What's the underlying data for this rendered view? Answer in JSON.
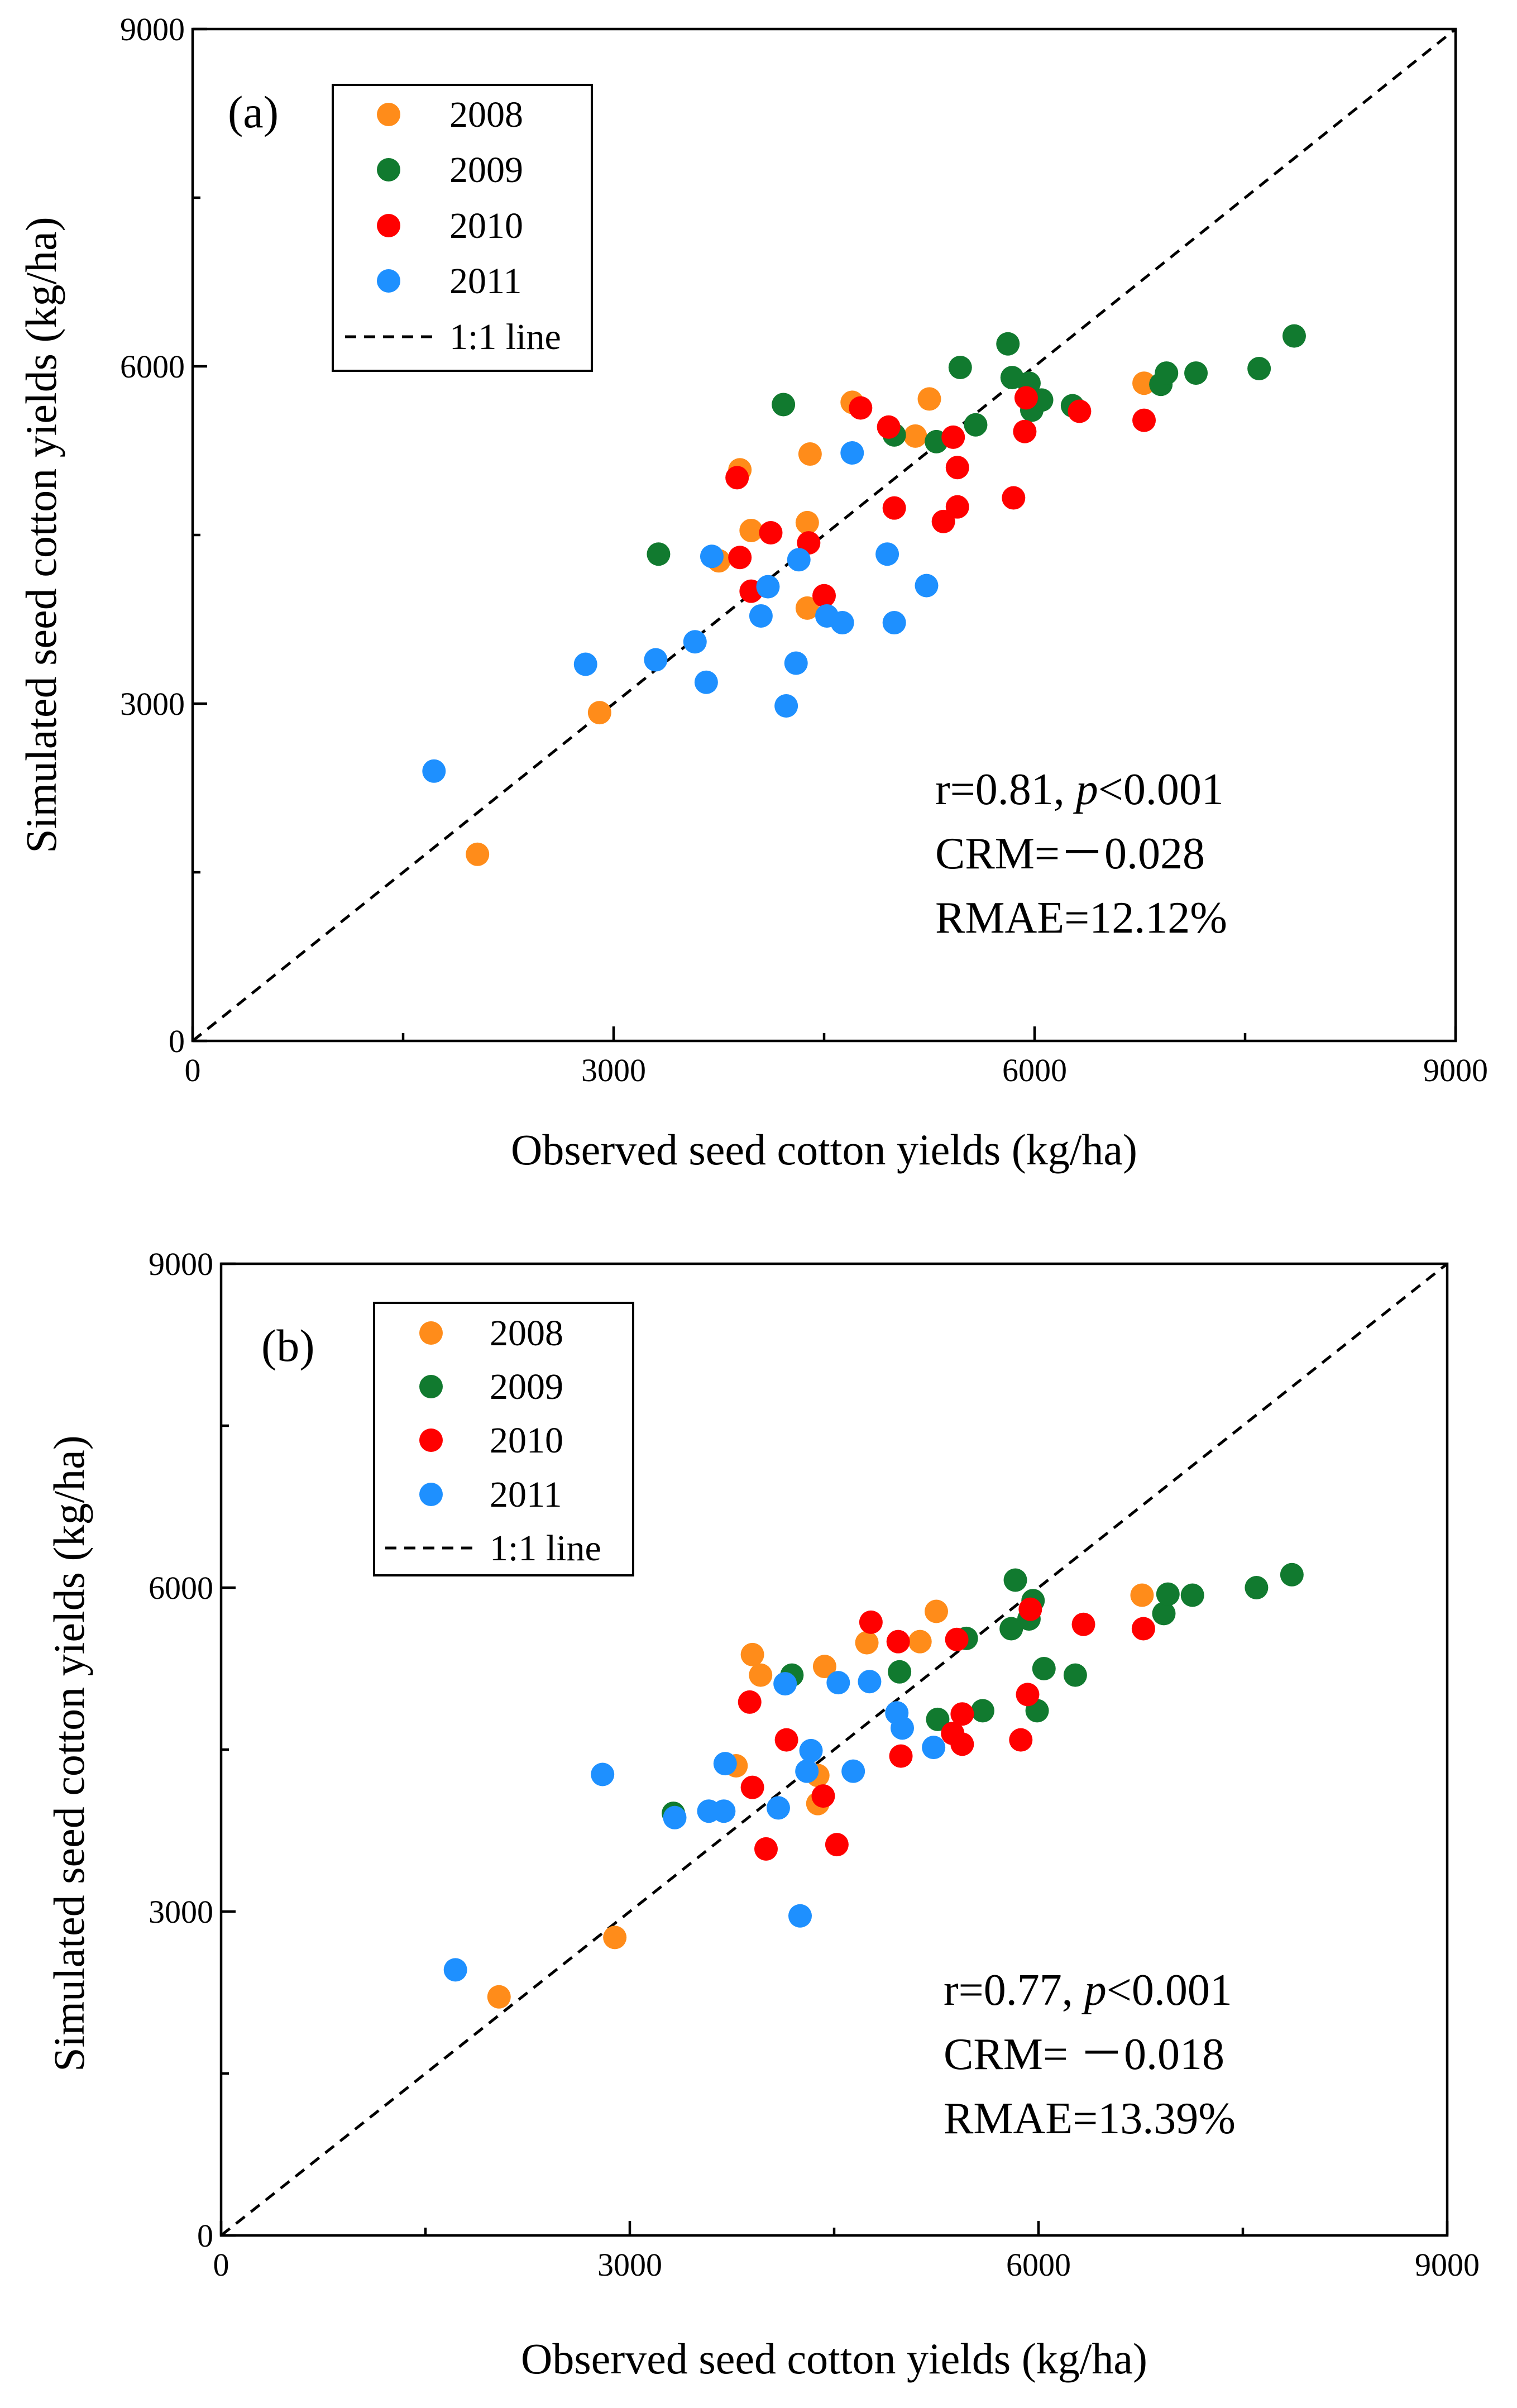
{
  "colors": {
    "2008": "#ff8c1a",
    "2009": "#117a2f",
    "2010": "#ff0000",
    "2011": "#1e90ff"
  },
  "chart_data": [
    {
      "type": "scatter",
      "panel_label": "(a)",
      "xlabel": "Observed seed cotton yields (kg/ha)",
      "ylabel": "Simulated seed cotton yields (kg/ha)",
      "xlim": [
        0,
        9000
      ],
      "ylim": [
        0,
        9000
      ],
      "x_ticks": [
        "0",
        "3000",
        "6000",
        "9000"
      ],
      "y_ticks": [
        "0",
        "3000",
        "6000",
        "9000"
      ],
      "legend": [
        "2008",
        "2009",
        "2010",
        "2011"
      ],
      "one_to_one_label": "1:1 line",
      "stats": {
        "r": "r=0.81, ",
        "p_symbol": "p",
        "p_value": "<0.001",
        "crm": "CRM=－0.028",
        "rmae": "RMAE=12.12%"
      },
      "series": [
        {
          "name": "2008",
          "points": [
            [
              2030,
              1660
            ],
            [
              2900,
              2920
            ],
            [
              3750,
              4270
            ],
            [
              3900,
              5080
            ],
            [
              3980,
              4540
            ],
            [
              4380,
              4610
            ],
            [
              4380,
              3850
            ],
            [
              4400,
              5220
            ],
            [
              4700,
              5680
            ],
            [
              5150,
              5380
            ],
            [
              5250,
              5710
            ],
            [
              6780,
              5850
            ]
          ]
        },
        {
          "name": "2009",
          "points": [
            [
              3320,
              4330
            ],
            [
              4210,
              5660
            ],
            [
              5000,
              5390
            ],
            [
              5300,
              5330
            ],
            [
              5470,
              5990
            ],
            [
              5580,
              5480
            ],
            [
              5810,
              6200
            ],
            [
              5840,
              5900
            ],
            [
              5960,
              5850
            ],
            [
              5980,
              5610
            ],
            [
              6050,
              5700
            ],
            [
              6270,
              5650
            ],
            [
              6900,
              5840
            ],
            [
              6940,
              5940
            ],
            [
              7150,
              5940
            ],
            [
              7600,
              5980
            ],
            [
              7850,
              6270
            ]
          ]
        },
        {
          "name": "2010",
          "points": [
            [
              3880,
              5010
            ],
            [
              3900,
              4300
            ],
            [
              3980,
              4000
            ],
            [
              4120,
              4520
            ],
            [
              4390,
              4430
            ],
            [
              4500,
              3960
            ],
            [
              4760,
              5630
            ],
            [
              4960,
              5460
            ],
            [
              5000,
              4740
            ],
            [
              5350,
              4620
            ],
            [
              5420,
              5370
            ],
            [
              5450,
              4750
            ],
            [
              5450,
              5100
            ],
            [
              5850,
              4830
            ],
            [
              5930,
              5420
            ],
            [
              5940,
              5720
            ],
            [
              6320,
              5600
            ],
            [
              6780,
              5520
            ]
          ]
        },
        {
          "name": "2011",
          "points": [
            [
              1720,
              2400
            ],
            [
              2800,
              3350
            ],
            [
              3300,
              3390
            ],
            [
              3580,
              3550
            ],
            [
              3660,
              3190
            ],
            [
              3700,
              4310
            ],
            [
              4050,
              3780
            ],
            [
              4100,
              4040
            ],
            [
              4230,
              2980
            ],
            [
              4300,
              3360
            ],
            [
              4320,
              4280
            ],
            [
              4520,
              3780
            ],
            [
              4630,
              3720
            ],
            [
              4700,
              5230
            ],
            [
              4950,
              4330
            ],
            [
              5000,
              3720
            ],
            [
              5230,
              4050
            ]
          ]
        }
      ]
    },
    {
      "type": "scatter",
      "panel_label": "(b)",
      "xlabel": "Observed seed cotton yields (kg/ha)",
      "ylabel": "Simulated seed cotton yields (kg/ha)",
      "xlim": [
        0,
        9000
      ],
      "ylim": [
        0,
        9000
      ],
      "x_ticks": [
        "0",
        "3000",
        "6000",
        "9000"
      ],
      "y_ticks": [
        "0",
        "3000",
        "6000",
        "9000"
      ],
      "legend": [
        "2008",
        "2009",
        "2010",
        "2011"
      ],
      "one_to_one_label": "1:1 line",
      "stats": {
        "r": "r=0.77, ",
        "p_symbol": "p",
        "p_value": "<0.001",
        "crm": "CRM= －0.018",
        "rmae": "RMAE=13.39%"
      },
      "series": [
        {
          "name": "2008",
          "points": [
            [
              2040,
              2210
            ],
            [
              2890,
              2760
            ],
            [
              3780,
              4350
            ],
            [
              3900,
              5380
            ],
            [
              3960,
              5190
            ],
            [
              4380,
              4260
            ],
            [
              4380,
              4000
            ],
            [
              4430,
              5270
            ],
            [
              4740,
              5490
            ],
            [
              5130,
              5500
            ],
            [
              5250,
              5780
            ],
            [
              6760,
              5930
            ]
          ]
        },
        {
          "name": "2009",
          "points": [
            [
              3320,
              3910
            ],
            [
              4190,
              5190
            ],
            [
              4980,
              5220
            ],
            [
              5260,
              4780
            ],
            [
              5470,
              5530
            ],
            [
              5590,
              4860
            ],
            [
              5800,
              5620
            ],
            [
              5830,
              6070
            ],
            [
              5930,
              5710
            ],
            [
              5960,
              5880
            ],
            [
              5990,
              4860
            ],
            [
              6040,
              5250
            ],
            [
              6270,
              5190
            ],
            [
              6920,
              5760
            ],
            [
              6950,
              5940
            ],
            [
              7130,
              5930
            ],
            [
              7600,
              6000
            ],
            [
              7860,
              6120
            ]
          ]
        },
        {
          "name": "2010",
          "points": [
            [
              3880,
              4940
            ],
            [
              3900,
              4150
            ],
            [
              4000,
              3580
            ],
            [
              4150,
              4590
            ],
            [
              4420,
              4070
            ],
            [
              4520,
              3620
            ],
            [
              4770,
              5680
            ],
            [
              4970,
              5500
            ],
            [
              4990,
              4440
            ],
            [
              5370,
              4650
            ],
            [
              5400,
              5520
            ],
            [
              5440,
              4550
            ],
            [
              5440,
              4830
            ],
            [
              5870,
              4590
            ],
            [
              5920,
              5010
            ],
            [
              5940,
              5800
            ],
            [
              6330,
              5660
            ],
            [
              6770,
              5620
            ]
          ]
        },
        {
          "name": "2011",
          "points": [
            [
              1720,
              2460
            ],
            [
              2800,
              4270
            ],
            [
              3330,
              3870
            ],
            [
              3580,
              3930
            ],
            [
              3690,
              3930
            ],
            [
              3700,
              4370
            ],
            [
              4090,
              3960
            ],
            [
              4140,
              5110
            ],
            [
              4250,
              2960
            ],
            [
              4300,
              4300
            ],
            [
              4330,
              4490
            ],
            [
              4530,
              5120
            ],
            [
              4640,
              4300
            ],
            [
              4760,
              5130
            ],
            [
              4960,
              4840
            ],
            [
              5000,
              4700
            ],
            [
              5230,
              4520
            ]
          ]
        }
      ]
    }
  ]
}
